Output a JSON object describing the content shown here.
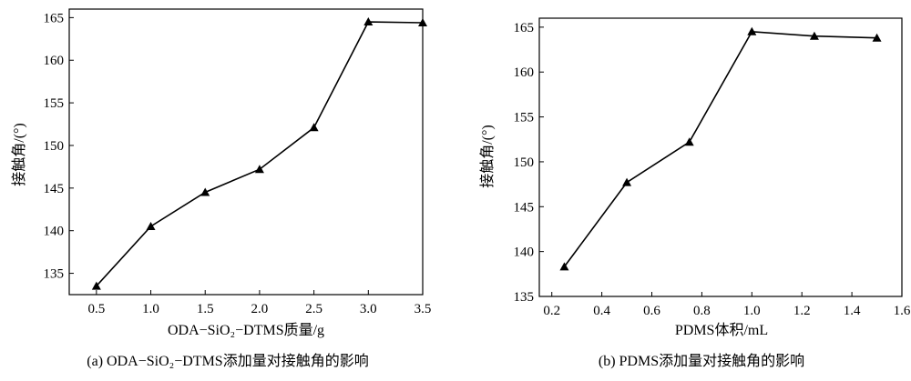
{
  "chart_data": [
    {
      "type": "line",
      "x": [
        0.5,
        1.0,
        1.5,
        2.0,
        2.5,
        3.0,
        3.5
      ],
      "series": [
        {
          "values": [
            133.5,
            140.5,
            144.5,
            147.2,
            152.1,
            164.5,
            164.4
          ]
        }
      ],
      "xlabel": "ODA−SiO₂−DTMS质量/g",
      "ylabel": "接触角/(°)",
      "xticks": [
        "0.5",
        "1.0",
        "1.5",
        "2.0",
        "2.5",
        "3.0",
        "3.5"
      ],
      "yticks": [
        "135",
        "140",
        "145",
        "150",
        "155",
        "160",
        "165"
      ],
      "xlim": [
        0.25,
        3.5
      ],
      "ylim": [
        132.5,
        166
      ],
      "caption": "(a) ODA−SiO₂−DTMS添加量对接触角的影响",
      "marker": "triangle",
      "line_color": "#000000"
    },
    {
      "type": "line",
      "x": [
        0.25,
        0.5,
        0.75,
        1.0,
        1.25,
        1.5
      ],
      "series": [
        {
          "values": [
            138.3,
            147.7,
            152.2,
            164.5,
            164.0,
            163.8
          ]
        }
      ],
      "xlabel": "PDMS体积/mL",
      "ylabel": "接触角/(°)",
      "xticks": [
        "0.2",
        "0.4",
        "0.6",
        "0.8",
        "1.0",
        "1.2",
        "1.4",
        "1.6"
      ],
      "yticks": [
        "135",
        "140",
        "145",
        "150",
        "155",
        "160",
        "165"
      ],
      "xlim": [
        0.15,
        1.6
      ],
      "ylim": [
        135,
        166
      ],
      "caption": "(b) PDMS添加量对接触角的影响",
      "marker": "triangle",
      "line_color": "#000000"
    }
  ]
}
